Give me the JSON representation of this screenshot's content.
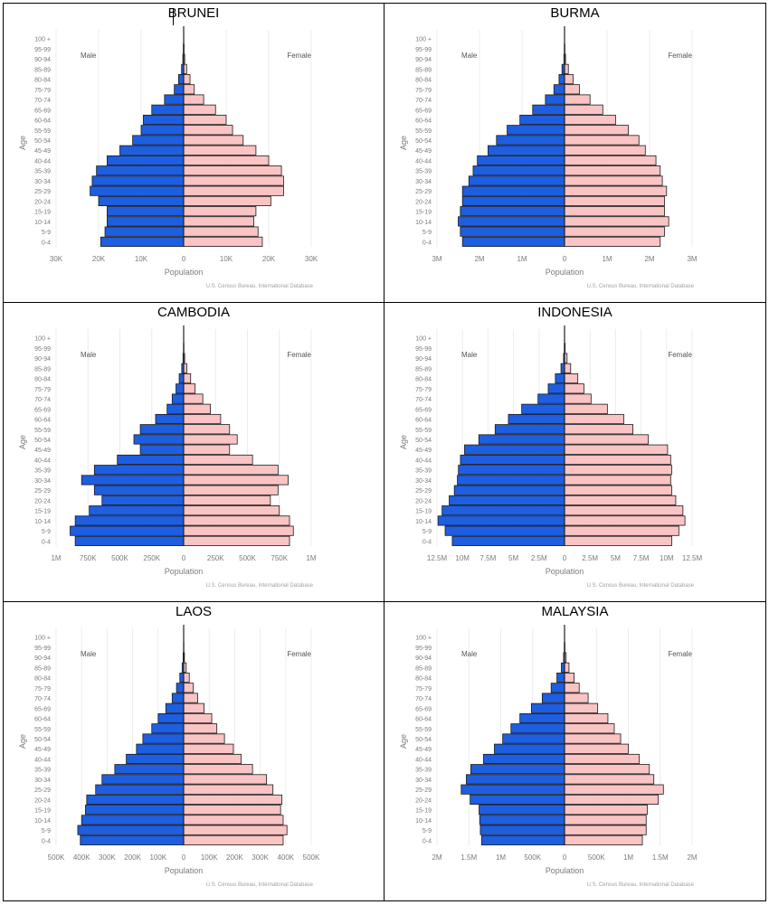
{
  "colors": {
    "male": "#1e5ee0",
    "female": "#fac4c4",
    "bar_stroke": "#1a1a1a",
    "axis_text": "#7b7b7b",
    "grid": "#ececec"
  },
  "axis_labels": {
    "x": "Population",
    "y": "Age",
    "male": "Male",
    "female": "Female",
    "source": "U.S. Census Bureau, International Database"
  },
  "age_groups": [
    "0-4",
    "5-9",
    "10-14",
    "15-19",
    "20-24",
    "25-29",
    "30-34",
    "35-39",
    "40-44",
    "45-49",
    "50-54",
    "55-59",
    "60-64",
    "65-69",
    "70-74",
    "75-79",
    "80-84",
    "85-89",
    "90-94",
    "95-99",
    "100 +"
  ],
  "chart_data": [
    {
      "type": "bar",
      "title": "BRUNEI",
      "xlabel": "Population",
      "ylabel": "Age",
      "categories": [
        "0-4",
        "5-9",
        "10-14",
        "15-19",
        "20-24",
        "25-29",
        "30-34",
        "35-39",
        "40-44",
        "45-49",
        "50-54",
        "55-59",
        "60-64",
        "65-69",
        "70-74",
        "75-79",
        "80-84",
        "85-89",
        "90-94",
        "95-99",
        "100 +"
      ],
      "xlim": [
        -30000,
        30000
      ],
      "ticks": [
        {
          "value": -30000,
          "label": "30K"
        },
        {
          "value": -20000,
          "label": "20K"
        },
        {
          "value": -10000,
          "label": "10K"
        },
        {
          "value": 0,
          "label": "0"
        },
        {
          "value": 10000,
          "label": "10K"
        },
        {
          "value": 20000,
          "label": "20K"
        },
        {
          "value": 30000,
          "label": "30K"
        }
      ],
      "series": [
        {
          "name": "Male",
          "values": [
            19500,
            18500,
            18000,
            18000,
            20000,
            22000,
            21500,
            20500,
            18000,
            15000,
            12000,
            10000,
            9500,
            7500,
            4500,
            2200,
            1200,
            500,
            200,
            80,
            20
          ]
        },
        {
          "name": "Female",
          "values": [
            18500,
            17500,
            16500,
            17000,
            20500,
            23500,
            23500,
            23000,
            20000,
            17000,
            14000,
            11500,
            10000,
            7500,
            4700,
            2500,
            1500,
            700,
            250,
            100,
            30
          ]
        }
      ]
    },
    {
      "type": "bar",
      "title": "BURMA",
      "xlabel": "Population",
      "ylabel": "Age",
      "categories": [
        "0-4",
        "5-9",
        "10-14",
        "15-19",
        "20-24",
        "25-29",
        "30-34",
        "35-39",
        "40-44",
        "45-49",
        "50-54",
        "55-59",
        "60-64",
        "65-69",
        "70-74",
        "75-79",
        "80-84",
        "85-89",
        "90-94",
        "95-99",
        "100 +"
      ],
      "xlim": [
        -3000000,
        3000000
      ],
      "ticks": [
        {
          "value": -3000000,
          "label": "3M"
        },
        {
          "value": -2000000,
          "label": "2M"
        },
        {
          "value": -1000000,
          "label": "1M"
        },
        {
          "value": 0,
          "label": "0"
        },
        {
          "value": 1000000,
          "label": "1M"
        },
        {
          "value": 2000000,
          "label": "2M"
        },
        {
          "value": 3000000,
          "label": "3M"
        }
      ],
      "series": [
        {
          "name": "Male",
          "values": [
            2400000,
            2450000,
            2500000,
            2450000,
            2400000,
            2400000,
            2250000,
            2150000,
            2050000,
            1800000,
            1600000,
            1350000,
            1050000,
            750000,
            450000,
            250000,
            130000,
            60000,
            15000,
            5000,
            1000
          ]
        },
        {
          "name": "Female",
          "values": [
            2250000,
            2350000,
            2450000,
            2350000,
            2350000,
            2400000,
            2300000,
            2250000,
            2150000,
            1900000,
            1750000,
            1500000,
            1200000,
            900000,
            600000,
            350000,
            200000,
            90000,
            25000,
            8000,
            1500
          ]
        }
      ]
    },
    {
      "type": "bar",
      "title": "CAMBODIA",
      "xlabel": "Population",
      "ylabel": "Age",
      "categories": [
        "0-4",
        "5-9",
        "10-14",
        "15-19",
        "20-24",
        "25-29",
        "30-34",
        "35-39",
        "40-44",
        "45-49",
        "50-54",
        "55-59",
        "60-64",
        "65-69",
        "70-74",
        "75-79",
        "80-84",
        "85-89",
        "90-94",
        "95-99",
        "100 +"
      ],
      "xlim": [
        -1000000,
        1000000
      ],
      "ticks": [
        {
          "value": -1000000,
          "label": "1M"
        },
        {
          "value": -750000,
          "label": "750K"
        },
        {
          "value": -500000,
          "label": "500K"
        },
        {
          "value": -250000,
          "label": "250K"
        },
        {
          "value": 0,
          "label": "0"
        },
        {
          "value": 250000,
          "label": "250K"
        },
        {
          "value": 500000,
          "label": "500K"
        },
        {
          "value": 750000,
          "label": "750K"
        },
        {
          "value": 1000000,
          "label": "1M"
        }
      ],
      "series": [
        {
          "name": "Male",
          "values": [
            850000,
            890000,
            850000,
            740000,
            640000,
            700000,
            800000,
            700000,
            520000,
            340000,
            390000,
            340000,
            220000,
            130000,
            90000,
            60000,
            35000,
            15000,
            5000,
            1500,
            300
          ]
        },
        {
          "name": "Female",
          "values": [
            830000,
            860000,
            830000,
            750000,
            680000,
            740000,
            820000,
            740000,
            540000,
            360000,
            420000,
            360000,
            290000,
            210000,
            150000,
            90000,
            55000,
            25000,
            8000,
            2000,
            400
          ]
        }
      ]
    },
    {
      "type": "bar",
      "title": "INDONESIA",
      "xlabel": "Population",
      "ylabel": "Age",
      "categories": [
        "0-4",
        "5-9",
        "10-14",
        "15-19",
        "20-24",
        "25-29",
        "30-34",
        "35-39",
        "40-44",
        "45-49",
        "50-54",
        "55-59",
        "60-64",
        "65-69",
        "70-74",
        "75-79",
        "80-84",
        "85-89",
        "90-94",
        "95-99",
        "100 +"
      ],
      "xlim": [
        -12500000,
        12500000
      ],
      "ticks": [
        {
          "value": -12500000,
          "label": "12.5M"
        },
        {
          "value": -10000000,
          "label": "10M"
        },
        {
          "value": -7500000,
          "label": "7.5M"
        },
        {
          "value": -5000000,
          "label": "5M"
        },
        {
          "value": -2500000,
          "label": "2.5M"
        },
        {
          "value": 0,
          "label": "0"
        },
        {
          "value": 2500000,
          "label": "2.5M"
        },
        {
          "value": 5000000,
          "label": "5M"
        },
        {
          "value": 7500000,
          "label": "7.5M"
        },
        {
          "value": 10000000,
          "label": "10M"
        },
        {
          "value": 12500000,
          "label": "12.5M"
        }
      ],
      "series": [
        {
          "name": "Male",
          "values": [
            11000000,
            11700000,
            12400000,
            12000000,
            11300000,
            10800000,
            10500000,
            10400000,
            10200000,
            9800000,
            8400000,
            6800000,
            5500000,
            4200000,
            2600000,
            1600000,
            900000,
            350000,
            100000,
            20000,
            5000
          ]
        },
        {
          "name": "Female",
          "values": [
            10500000,
            11200000,
            11800000,
            11600000,
            10900000,
            10500000,
            10400000,
            10500000,
            10400000,
            10100000,
            8200000,
            6700000,
            5800000,
            4200000,
            2600000,
            1900000,
            1300000,
            600000,
            250000,
            60000,
            10000
          ]
        }
      ]
    },
    {
      "type": "bar",
      "title": "LAOS",
      "xlabel": "Population",
      "ylabel": "Age",
      "categories": [
        "0-4",
        "5-9",
        "10-14",
        "15-19",
        "20-24",
        "25-29",
        "30-34",
        "35-39",
        "40-44",
        "45-49",
        "50-54",
        "55-59",
        "60-64",
        "65-69",
        "70-74",
        "75-79",
        "80-84",
        "85-89",
        "90-94",
        "95-99",
        "100 +"
      ],
      "xlim": [
        -500000,
        500000
      ],
      "ticks": [
        {
          "value": -500000,
          "label": "500K"
        },
        {
          "value": -400000,
          "label": "400K"
        },
        {
          "value": -300000,
          "label": "300K"
        },
        {
          "value": -200000,
          "label": "200K"
        },
        {
          "value": -100000,
          "label": "100K"
        },
        {
          "value": 0,
          "label": "0"
        },
        {
          "value": 100000,
          "label": "100K"
        },
        {
          "value": 200000,
          "label": "200K"
        },
        {
          "value": 300000,
          "label": "300K"
        },
        {
          "value": 400000,
          "label": "400K"
        },
        {
          "value": 500000,
          "label": "500K"
        }
      ],
      "series": [
        {
          "name": "Male",
          "values": [
            405000,
            415000,
            400000,
            385000,
            380000,
            345000,
            320000,
            270000,
            225000,
            185000,
            160000,
            125000,
            100000,
            70000,
            45000,
            28000,
            15000,
            6000,
            2000,
            500,
            100
          ]
        },
        {
          "name": "Female",
          "values": [
            390000,
            405000,
            390000,
            380000,
            385000,
            350000,
            325000,
            270000,
            225000,
            195000,
            160000,
            130000,
            110000,
            80000,
            55000,
            38000,
            22000,
            10000,
            3000,
            800,
            150
          ]
        }
      ]
    },
    {
      "type": "bar",
      "title": "MALAYSIA",
      "xlabel": "Population",
      "ylabel": "Age",
      "categories": [
        "0-4",
        "5-9",
        "10-14",
        "15-19",
        "20-24",
        "25-29",
        "30-34",
        "35-39",
        "40-44",
        "45-49",
        "50-54",
        "55-59",
        "60-64",
        "65-69",
        "70-74",
        "75-79",
        "80-84",
        "85-89",
        "90-94",
        "95-99",
        "100 +"
      ],
      "xlim": [
        -2000000,
        2000000
      ],
      "ticks": [
        {
          "value": -2000000,
          "label": "2M"
        },
        {
          "value": -1500000,
          "label": "1.5M"
        },
        {
          "value": -1000000,
          "label": "1M"
        },
        {
          "value": -500000,
          "label": "500K"
        },
        {
          "value": 0,
          "label": "0"
        },
        {
          "value": 500000,
          "label": "500K"
        },
        {
          "value": 1000000,
          "label": "1M"
        },
        {
          "value": 1500000,
          "label": "1.5M"
        },
        {
          "value": 2000000,
          "label": "2M"
        }
      ],
      "series": [
        {
          "name": "Male",
          "values": [
            1300000,
            1320000,
            1330000,
            1340000,
            1480000,
            1620000,
            1540000,
            1470000,
            1270000,
            1100000,
            970000,
            840000,
            700000,
            520000,
            350000,
            210000,
            120000,
            50000,
            15000,
            4000,
            800
          ]
        },
        {
          "name": "Female",
          "values": [
            1220000,
            1280000,
            1280000,
            1300000,
            1470000,
            1550000,
            1400000,
            1330000,
            1170000,
            1000000,
            880000,
            780000,
            680000,
            520000,
            370000,
            230000,
            150000,
            70000,
            25000,
            6000,
            1000
          ]
        }
      ]
    }
  ]
}
